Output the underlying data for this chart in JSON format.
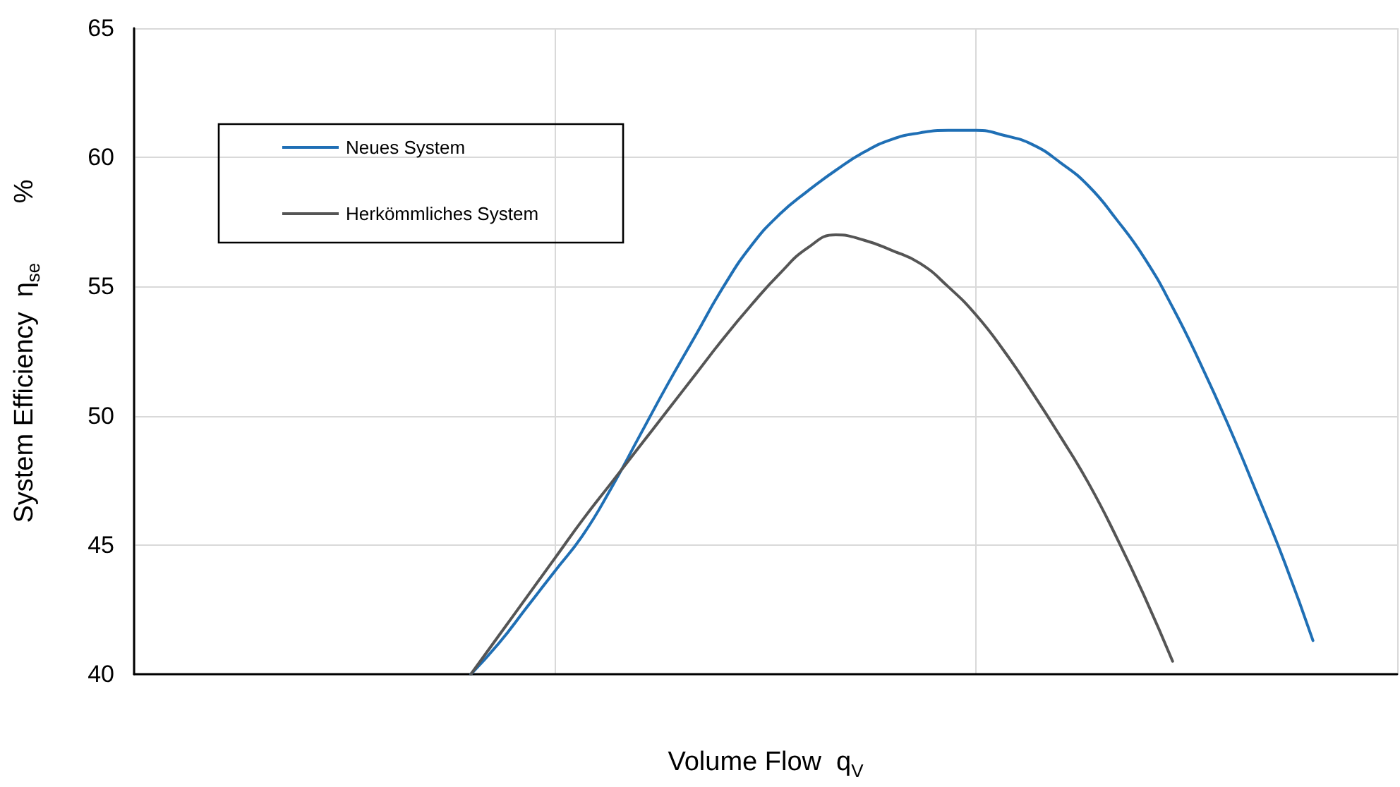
{
  "chart_data": {
    "type": "line",
    "xlabel": "Volume Flow  q$_{V}$",
    "ylabel": "System Efficiency  η$_{se}$        %",
    "categories": [
      null,
      null,
      null,
      null,
      null,
      null,
      null,
      null,
      null,
      null,
      null,
      null,
      null,
      null,
      null,
      null,
      null,
      null,
      null,
      null,
      null,
      null,
      null,
      null,
      null,
      null,
      null,
      null,
      null,
      null,
      null,
      null,
      null,
      null,
      null,
      null,
      null,
      null,
      null,
      null,
      null,
      null,
      null,
      null,
      null,
      null
    ],
    "series": [
      {
        "name": "Neues System",
        "color": "#1f6fb5",
        "values": [
          null,
          null,
          null,
          null,
          null,
          null,
          null,
          null,
          null,
          null,
          null,
          null,
          40,
          41.2,
          42.6,
          44.0,
          45.4,
          47.2,
          49.2,
          51.2,
          53.1,
          55.0,
          56.6,
          57.8,
          58.7,
          59.5,
          60.2,
          60.7,
          60.95,
          61.05,
          61.05,
          60.85,
          60.5,
          59.8,
          58.9,
          57.6,
          56.1,
          54.2,
          52.0,
          49.6,
          47.0,
          44.3,
          41.3,
          null,
          null,
          null
        ]
      },
      {
        "name": "Herkömmliches System",
        "color": "#555555",
        "values": [
          null,
          null,
          null,
          null,
          null,
          null,
          null,
          null,
          null,
          null,
          null,
          null,
          40,
          41.5,
          43.0,
          44.5,
          46.0,
          47.4,
          48.8,
          50.2,
          51.6,
          53.0,
          54.3,
          55.5,
          56.5,
          57.0,
          56.8,
          56.4,
          55.9,
          55.0,
          53.9,
          52.5,
          50.9,
          49.2,
          47.4,
          45.3,
          43.0,
          40.5,
          null,
          null,
          null,
          null,
          null,
          null,
          null,
          null
        ]
      }
    ],
    "ylim": [
      40,
      65
    ],
    "yticks": [
      40,
      45,
      50,
      55,
      60,
      65
    ],
    "grid": true,
    "legend": "top left",
    "tick_labels": "y",
    "marker": "none",
    "line_style": "solid"
  }
}
